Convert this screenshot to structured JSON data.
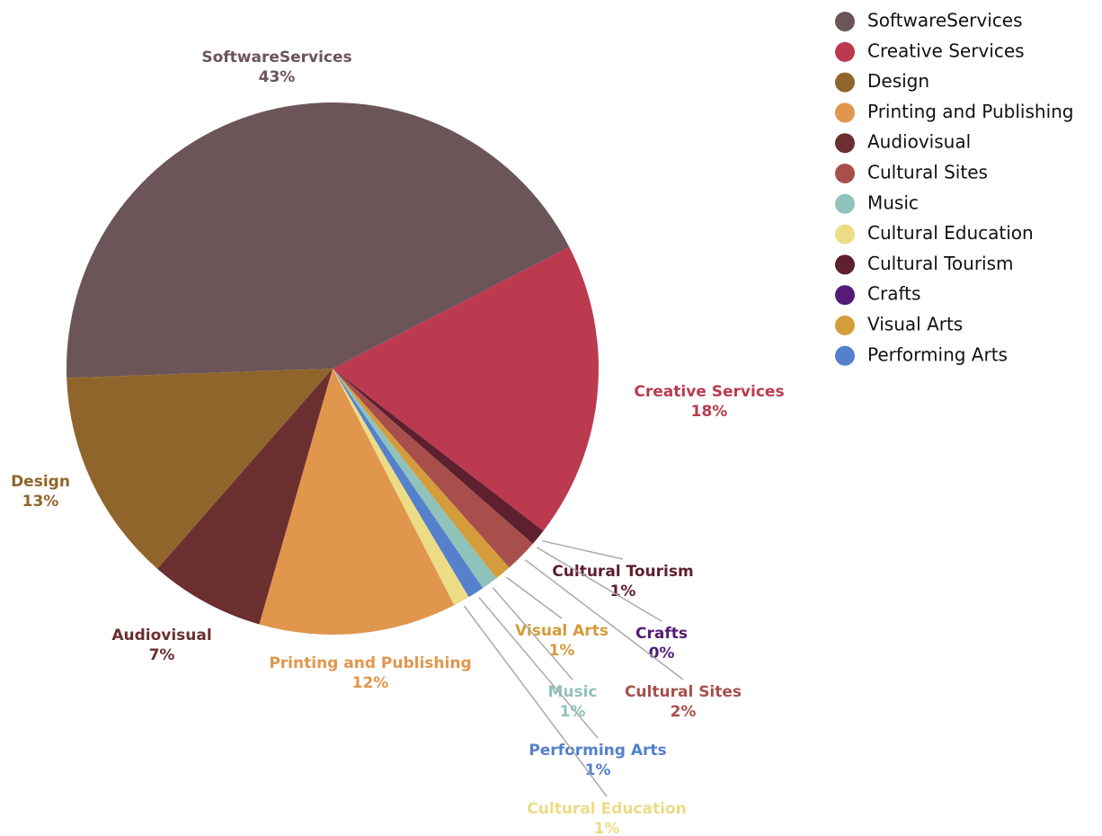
{
  "chart_data": {
    "type": "pie",
    "categories": [
      "SoftwareServices",
      "Creative Services",
      "Cultural Tourism",
      "Crafts",
      "Cultural Sites",
      "Visual Arts",
      "Music",
      "Performing Arts",
      "Cultural Education",
      "Printing and Publishing",
      "Audiovisual",
      "Design"
    ],
    "values": [
      43,
      18,
      1,
      0,
      2,
      1,
      1,
      1,
      1,
      12,
      7,
      13
    ],
    "value_labels": [
      "43%",
      "18%",
      "1%",
      "0%",
      "2%",
      "1%",
      "1%",
      "1%",
      "1%",
      "12%",
      "7%",
      "13%"
    ],
    "colors": [
      "#6b5558",
      "#bb3a50",
      "#5e1f2e",
      "#541c78",
      "#a84f4c",
      "#d49c3b",
      "#8fc2bb",
      "#5480cc",
      "#ebdc85",
      "#e0964d",
      "#6b2f30",
      "#8f652b"
    ],
    "legend": "top-right"
  }
}
